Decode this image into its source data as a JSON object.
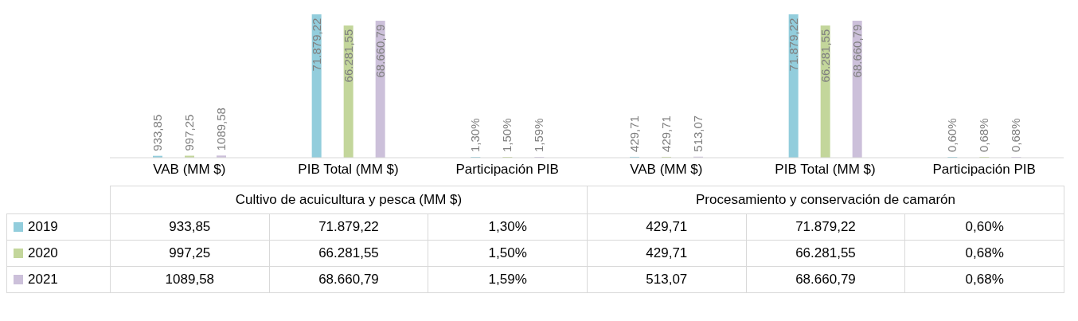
{
  "chart_data": {
    "type": "bar",
    "categories": [
      "VAB (MM $)",
      "PIB Total (MM $)",
      "Participación PIB",
      "VAB (MM $)",
      "PIB Total (MM $)",
      "Participación PIB"
    ],
    "series": [
      {
        "name": "2019",
        "color": "#92cddc",
        "values": [
          933.85,
          71879.22,
          1.3,
          429.71,
          71879.22,
          0.6
        ],
        "value_labels": [
          "933,85",
          "71.879,22",
          "1,30%",
          "429,71",
          "71.879,22",
          "0,60%"
        ]
      },
      {
        "name": "2020",
        "color": "#c3d69b",
        "values": [
          997.25,
          66281.55,
          1.5,
          429.71,
          66281.55,
          0.68
        ],
        "value_labels": [
          "997,25",
          "66.281,55",
          "1,50%",
          "429,71",
          "66.281,55",
          "0,68%"
        ]
      },
      {
        "name": "2021",
        "color": "#ccc0da",
        "values": [
          1089.58,
          68660.79,
          1.59,
          513.07,
          68660.79,
          0.68
        ],
        "value_labels": [
          "1089,58",
          "68.660,79",
          "1,59%",
          "513,07",
          "68.660,79",
          "0,68%"
        ]
      }
    ],
    "annotations": [
      "Cultivo  de acuicultura y pesca (MM $)",
      "Procesamiento y conservación de camarón"
    ],
    "legend": "bottom left",
    "grid": false
  }
}
